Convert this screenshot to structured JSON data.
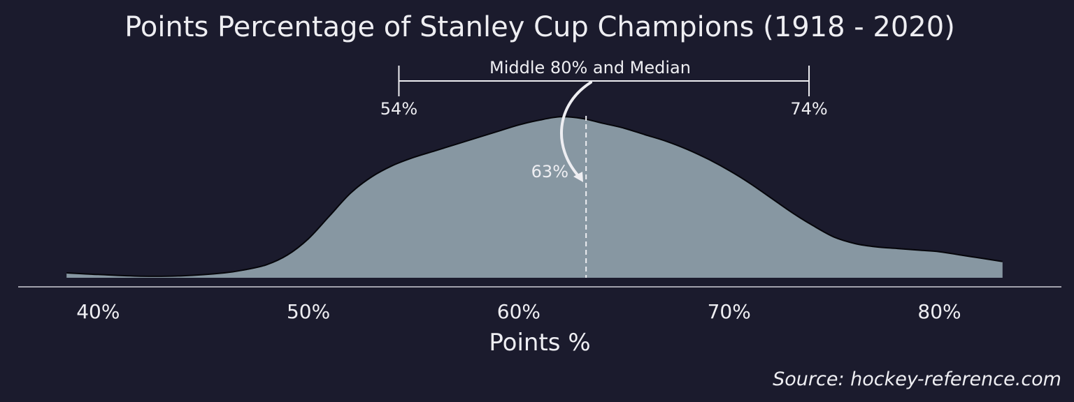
{
  "chart_data": {
    "type": "area",
    "title": "Points Percentage of Stanley Cup Champions (1918 - 2020)",
    "xlabel": "Points %",
    "ylabel": "",
    "x_unit": "%",
    "xlim": [
      36.2,
      85.8
    ],
    "ylim": [
      0,
      1.0
    ],
    "x_ticks": [
      40,
      50,
      60,
      70,
      80
    ],
    "x_tick_labels": [
      "40%",
      "50%",
      "60%",
      "70%",
      "80%"
    ],
    "grid": false,
    "legend": "none",
    "series": [
      {
        "x": [
          38.5,
          40,
          42,
          44,
          46,
          47,
          48,
          49,
          50,
          51,
          52,
          53,
          54,
          55,
          56,
          57,
          58,
          59,
          60,
          61,
          62,
          63,
          64,
          65,
          66,
          67,
          68,
          69,
          70,
          71,
          72,
          73,
          74,
          75,
          76,
          77,
          78,
          79,
          80,
          81,
          82,
          83
        ],
        "y": [
          0.03,
          0.02,
          0.01,
          0.012,
          0.03,
          0.05,
          0.08,
          0.14,
          0.24,
          0.38,
          0.52,
          0.62,
          0.69,
          0.74,
          0.78,
          0.82,
          0.86,
          0.9,
          0.94,
          0.97,
          0.99,
          0.98,
          0.95,
          0.92,
          0.88,
          0.84,
          0.79,
          0.73,
          0.66,
          0.58,
          0.49,
          0.4,
          0.32,
          0.25,
          0.21,
          0.19,
          0.18,
          0.17,
          0.16,
          0.14,
          0.12,
          0.1
        ]
      }
    ],
    "colors": {
      "background": "#1b1b2d",
      "fill": "#8797a2",
      "outline": "#05050a",
      "text": "#eeeef2",
      "axis": "#cfd0d8"
    },
    "annotations": {
      "bracket_label": "Middle 80% and Median",
      "p10": 54.3,
      "p10_label": "54%",
      "p90": 73.8,
      "p90_label": "74%",
      "median": 63.2,
      "median_label": "63%"
    },
    "source": "Source: hockey-reference.com"
  }
}
